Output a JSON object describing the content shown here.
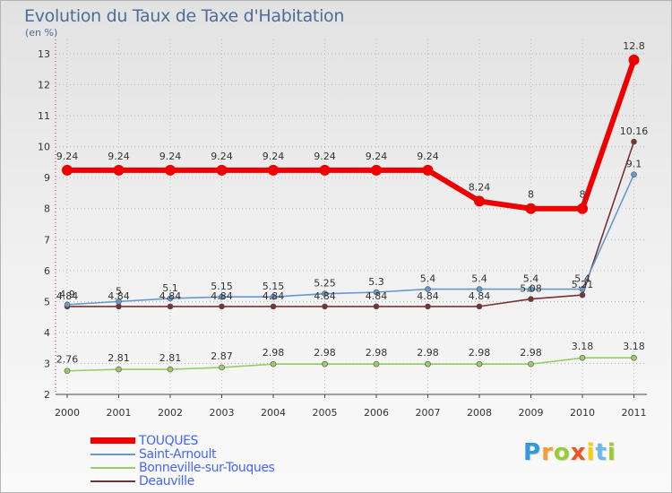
{
  "chart_data": {
    "type": "line",
    "title": "Evolution du Taux de Taxe d'Habitation",
    "subtitle": "(en %)",
    "x": [
      "2000",
      "2001",
      "2002",
      "2003",
      "2004",
      "2005",
      "2006",
      "2007",
      "2008",
      "2009",
      "2010",
      "2011"
    ],
    "ylim": [
      2,
      13
    ],
    "yticks": [
      "2",
      "3",
      "4",
      "5",
      "6",
      "7",
      "8",
      "9",
      "10",
      "11",
      "12",
      "13"
    ],
    "grid": true,
    "series": [
      {
        "name": "TOUQUES",
        "color": "#ee0000",
        "values": [
          9.24,
          9.24,
          9.24,
          9.24,
          9.24,
          9.24,
          9.24,
          9.24,
          8.24,
          8,
          8,
          12.8
        ],
        "labels": [
          "9.24",
          "9.24",
          "9.24",
          "9.24",
          "9.24",
          "9.24",
          "9.24",
          "9.24",
          "8.24",
          "8",
          "8",
          "12.8"
        ]
      },
      {
        "name": "Saint-Arnoult",
        "color": "#6699cc",
        "values": [
          4.9,
          5,
          5.1,
          5.15,
          5.15,
          5.25,
          5.3,
          5.4,
          5.4,
          5.4,
          5.4,
          9.1
        ],
        "labels": [
          "4.9",
          "5",
          "5.1",
          "5.15",
          "5.15",
          "5.25",
          "5.3",
          "5.4",
          "5.4",
          "5.4",
          "5.4",
          "9.1"
        ]
      },
      {
        "name": "Bonneville-sur-Touques",
        "color": "#99cc66",
        "values": [
          2.76,
          2.81,
          2.81,
          2.87,
          2.98,
          2.98,
          2.98,
          2.98,
          2.98,
          2.98,
          3.18,
          3.18
        ],
        "labels": [
          "2.76",
          "2.81",
          "2.81",
          "2.87",
          "2.98",
          "2.98",
          "2.98",
          "2.98",
          "2.98",
          "2.98",
          "3.18",
          "3.18"
        ]
      },
      {
        "name": "Deauville",
        "color": "#773333",
        "values": [
          4.84,
          4.84,
          4.84,
          4.84,
          4.84,
          4.84,
          4.84,
          4.84,
          4.84,
          5.08,
          5.21,
          10.16
        ],
        "labels": [
          "4.84",
          "4.84",
          "4.84",
          "4.84",
          "4.84",
          "4.84",
          "4.84",
          "4.84",
          "4.84",
          "5.08",
          "5.21",
          "10.16"
        ]
      }
    ],
    "legend": {
      "placement": "bottom-left"
    }
  },
  "logo": {
    "letters": [
      "P",
      "r",
      "o",
      "x",
      "i",
      "t",
      "i"
    ],
    "colors": [
      "#3399dd",
      "#ff9933",
      "#99cc33",
      "#ee5522",
      "#ffcc00",
      "#66bbee",
      "#99cc33"
    ]
  }
}
